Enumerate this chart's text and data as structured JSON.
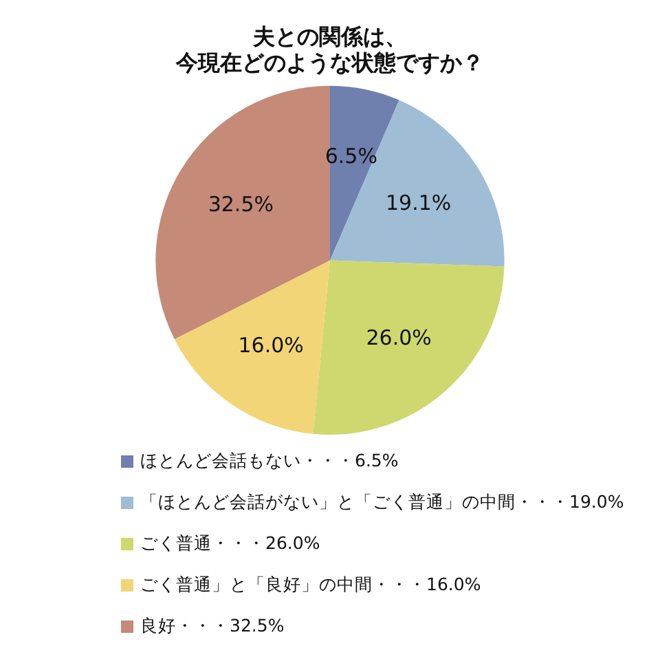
{
  "chart_data": {
    "type": "pie",
    "title": "夫との関係は、",
    "subtitle": "今現在どのような状態ですか？",
    "categories": [
      "ほとんど会話もない・・・6.5%",
      "「ほとんど会話がない」と「ごく普通」の中間・・・19.0%",
      "ごく普通・・・26.0%",
      "ごく普通」と「良好」の中間・・・16.0%",
      "良好・・・32.5%"
    ],
    "values": [
      6.5,
      19.1,
      26.0,
      16.0,
      32.5
    ],
    "colors": [
      "#6f7fae",
      "#9fbdd4",
      "#cfd86e",
      "#f2d576",
      "#c58a78"
    ],
    "value_labels": [
      "6.5%",
      "19.1%",
      "26.0%",
      "16.0%",
      "32.5%"
    ],
    "legend": "bottom"
  }
}
